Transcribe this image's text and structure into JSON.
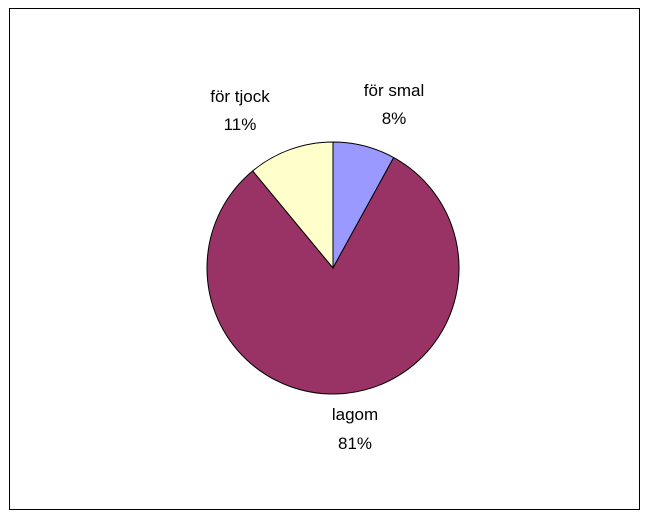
{
  "chart_data": {
    "type": "pie",
    "title": "",
    "slices": [
      {
        "label": "för smal",
        "value": 8,
        "value_label": "8%",
        "color": "#9999FF"
      },
      {
        "label": "lagom",
        "value": 81,
        "value_label": "81%",
        "color": "#993366"
      },
      {
        "label": "för tjock",
        "value": 11,
        "value_label": "11%",
        "color": "#FFFFCC"
      }
    ],
    "start_angle": "12 o'clock",
    "direction": "clockwise",
    "legend": "none",
    "slice_border_color": "#000000"
  }
}
